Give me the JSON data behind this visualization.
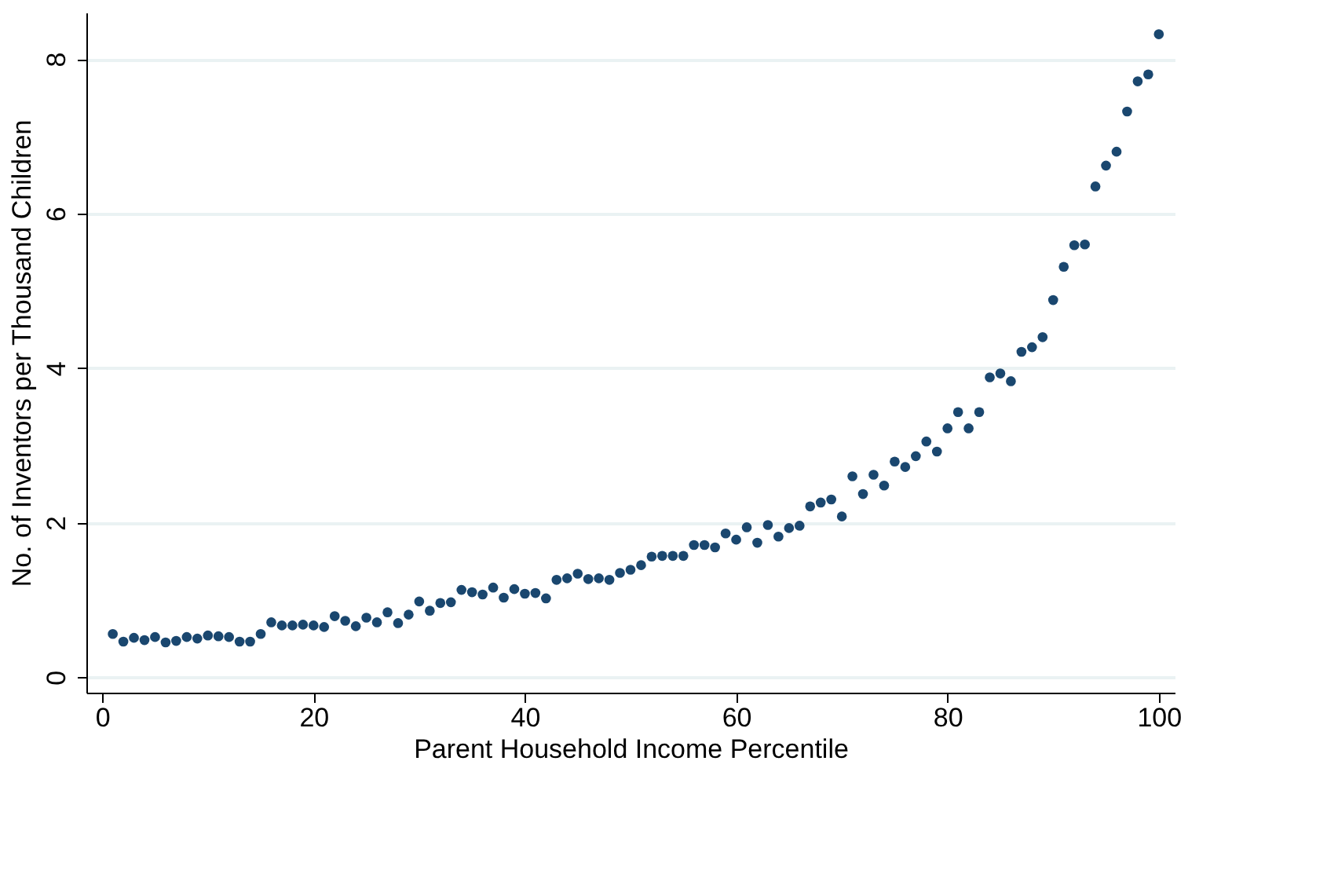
{
  "chart_data": {
    "type": "scatter",
    "xlabel": "Parent Household Income Percentile",
    "ylabel": "No. of Inventors per Thousand Children",
    "x": [
      1,
      2,
      3,
      4,
      5,
      6,
      7,
      8,
      9,
      10,
      11,
      12,
      13,
      14,
      15,
      16,
      17,
      18,
      19,
      20,
      21,
      22,
      23,
      24,
      25,
      26,
      27,
      28,
      29,
      30,
      31,
      32,
      33,
      34,
      35,
      36,
      37,
      38,
      39,
      40,
      41,
      42,
      43,
      44,
      45,
      46,
      47,
      48,
      49,
      50,
      51,
      52,
      53,
      54,
      55,
      56,
      57,
      58,
      59,
      60,
      61,
      62,
      63,
      64,
      65,
      66,
      67,
      68,
      69,
      70,
      71,
      72,
      73,
      74,
      75,
      76,
      77,
      78,
      79,
      80,
      81,
      82,
      83,
      84,
      85,
      86,
      87,
      88,
      89,
      90,
      91,
      92,
      93,
      94,
      95,
      96,
      97,
      98,
      99,
      100
    ],
    "series": [
      {
        "color": "#1a476f",
        "values": [
          0.56,
          0.46,
          0.51,
          0.48,
          0.52,
          0.45,
          0.47,
          0.52,
          0.5,
          0.54,
          0.53,
          0.52,
          0.46,
          0.46,
          0.56,
          0.71,
          0.67,
          0.67,
          0.68,
          0.67,
          0.65,
          0.79,
          0.73,
          0.66,
          0.77,
          0.71,
          0.84,
          0.7,
          0.81,
          0.98,
          0.86,
          0.96,
          0.97,
          1.13,
          1.1,
          1.07,
          1.16,
          1.03,
          1.14,
          1.08,
          1.09,
          1.02,
          1.26,
          1.28,
          1.34,
          1.27,
          1.28,
          1.26,
          1.35,
          1.39,
          1.45,
          1.56,
          1.57,
          1.57,
          1.57,
          1.71,
          1.71,
          1.68,
          1.86,
          1.78,
          1.94,
          1.74,
          1.97,
          1.82,
          1.93,
          1.96,
          2.21,
          2.26,
          2.3,
          2.08,
          2.6,
          2.37,
          2.62,
          2.48,
          2.79,
          2.72,
          2.86,
          3.05,
          2.92,
          3.22,
          3.43,
          3.22,
          3.43,
          3.88,
          3.93,
          3.83,
          4.21,
          4.27,
          4.4,
          4.88,
          5.31,
          5.59,
          5.6,
          6.35,
          6.62,
          6.8,
          7.32,
          7.71,
          7.8,
          8.32
        ]
      }
    ],
    "xlim": [
      -1.5,
      101.5
    ],
    "ylim": [
      -0.2,
      8.6
    ],
    "xticks": [
      0,
      20,
      40,
      60,
      80,
      100
    ],
    "yticks": [
      0,
      2,
      4,
      6,
      8
    ],
    "grid": "y",
    "marker": "circle",
    "legend": false
  }
}
